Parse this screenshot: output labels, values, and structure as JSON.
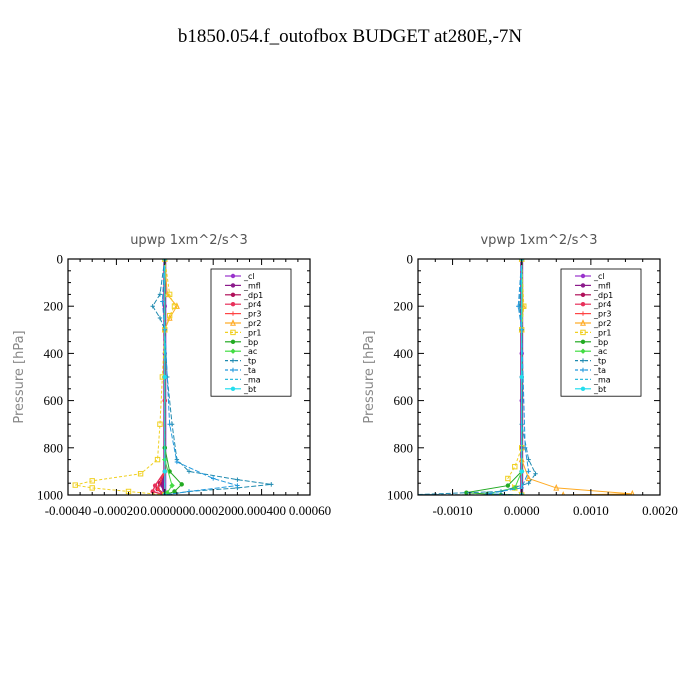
{
  "title": "b1850.054.f_outofbox  BUDGET at280E,-7N",
  "colors": {
    "_cl": "#9933cc",
    "_mfl": "#8b1a8b",
    "_dp1": "#b0105a",
    "_pr4": "#e8305a",
    "_pr3": "#ff4444",
    "_pr2": "#ffaa22",
    "_pr1": "#f0d020",
    "_bp": "#22aa22",
    "_ac": "#44dd44",
    "_tp": "#1f8ab0",
    "_ta": "#2299dd",
    "_ma": "#33bbdd",
    "_bt": "#22ddee"
  },
  "chart_data": [
    {
      "type": "line",
      "title": "upwp   1xm^2/s^3",
      "ylabel": "Pressure [hPa]",
      "xlabel": "",
      "xlim": [
        -0.0004,
        0.0006
      ],
      "ylim": [
        1000,
        0
      ],
      "y_inverted": true,
      "xticks": [
        "-0.00040",
        "-0.00020",
        "0.000000",
        "0.000200",
        "0.000400",
        "0.00060"
      ],
      "yticks": [
        "0",
        "200",
        "400",
        "600",
        "800",
        "1000"
      ],
      "legend_position": "top-right",
      "legend": [
        "_cl",
        "_mfl",
        "_dp1",
        "_pr4",
        "_pr3",
        "_pr2",
        "_pr1",
        "_bp",
        "_ac",
        "_tp",
        "_ta",
        "_ma",
        "_bt"
      ],
      "series": [
        {
          "name": "_cl",
          "points": [
            [
              0,
              0
            ],
            [
              0,
              200
            ],
            [
              0,
              400
            ],
            [
              0,
              600
            ],
            [
              0,
              800
            ],
            [
              0,
              1000
            ]
          ]
        },
        {
          "name": "_mfl",
          "points": [
            [
              0,
              0
            ],
            [
              0,
              500
            ],
            [
              0,
              900
            ],
            [
              -1e-05,
              960
            ],
            [
              0,
              1000
            ]
          ]
        },
        {
          "name": "_dp1",
          "points": [
            [
              0,
              0
            ],
            [
              0,
              500
            ],
            [
              0,
              900
            ],
            [
              -2e-05,
              950
            ],
            [
              -3e-05,
              975
            ],
            [
              0,
              1000
            ]
          ]
        },
        {
          "name": "_pr4",
          "points": [
            [
              0,
              0
            ],
            [
              0,
              600
            ],
            [
              0,
              900
            ],
            [
              -4e-05,
              960
            ],
            [
              -5e-05,
              985
            ],
            [
              0,
              1000
            ]
          ]
        },
        {
          "name": "_pr3",
          "points": [
            [
              0,
              0
            ],
            [
              0,
              900
            ],
            [
              -3e-05,
              975
            ],
            [
              0,
              1000
            ]
          ]
        },
        {
          "name": "_pr2",
          "points": [
            [
              0,
              0
            ],
            [
              1e-05,
              150
            ],
            [
              5e-05,
              200
            ],
            [
              2e-05,
              250
            ],
            [
              0,
              300
            ],
            [
              0,
              1000
            ]
          ]
        },
        {
          "name": "_pr1",
          "points": [
            [
              0,
              0
            ],
            [
              2e-05,
              150
            ],
            [
              4e-05,
              200
            ],
            [
              2e-05,
              240
            ],
            [
              0,
              300
            ],
            [
              -1e-05,
              500
            ],
            [
              -2e-05,
              700
            ],
            [
              -3e-05,
              850
            ],
            [
              -0.0001,
              910
            ],
            [
              -0.0003,
              940
            ],
            [
              -0.00037,
              958
            ],
            [
              -0.0003,
              970
            ],
            [
              -0.00015,
              985
            ],
            [
              0,
              1000
            ]
          ]
        },
        {
          "name": "_bp",
          "points": [
            [
              0,
              0
            ],
            [
              0,
              800
            ],
            [
              2e-05,
              900
            ],
            [
              7e-05,
              955
            ],
            [
              4e-05,
              985
            ],
            [
              0,
              1000
            ]
          ]
        },
        {
          "name": "_ac",
          "points": [
            [
              0,
              0
            ],
            [
              0,
              850
            ],
            [
              3e-05,
              960
            ],
            [
              1e-05,
              990
            ],
            [
              0,
              1000
            ]
          ]
        },
        {
          "name": "_tp",
          "points": [
            [
              0,
              0
            ],
            [
              -2e-05,
              150
            ],
            [
              -5e-05,
              200
            ],
            [
              -2e-05,
              250
            ],
            [
              0,
              300
            ],
            [
              1e-05,
              500
            ],
            [
              3e-05,
              700
            ],
            [
              5e-05,
              850
            ],
            [
              0.0001,
              900
            ],
            [
              0.0003,
              935
            ],
            [
              0.00044,
              955
            ],
            [
              0.0003,
              970
            ],
            [
              0.0001,
              985
            ],
            [
              0,
              1000
            ]
          ]
        },
        {
          "name": "_ta",
          "points": [
            [
              0,
              0
            ],
            [
              -1e-05,
              180
            ],
            [
              0,
              300
            ],
            [
              2e-05,
              700
            ],
            [
              5e-05,
              860
            ],
            [
              0.0002,
              930
            ],
            [
              0.0003,
              960
            ],
            [
              0.0001,
              985
            ],
            [
              0,
              1000
            ]
          ]
        },
        {
          "name": "_ma",
          "points": [
            [
              0,
              0
            ],
            [
              0,
              500
            ],
            [
              0,
              900
            ],
            [
              0,
              1000
            ]
          ]
        },
        {
          "name": "_bt",
          "points": [
            [
              0,
              0
            ],
            [
              0,
              500
            ],
            [
              0,
              900
            ],
            [
              0,
              1000
            ]
          ]
        }
      ]
    },
    {
      "type": "line",
      "title": "vpwp   1xm^2/s^3",
      "ylabel": "Pressure [hPa]",
      "xlabel": "",
      "xlim": [
        -0.0015,
        0.002
      ],
      "ylim": [
        1000,
        0
      ],
      "y_inverted": true,
      "xticks": [
        "-0.0010",
        "0.0000",
        "0.0010",
        "0.0020"
      ],
      "yticks": [
        "0",
        "200",
        "400",
        "600",
        "800",
        "1000"
      ],
      "legend_position": "top-right",
      "legend": [
        "_cl",
        "_mfl",
        "_dp1",
        "_pr4",
        "_pr3",
        "_pr2",
        "_pr1",
        "_bp",
        "_ac",
        "_tp",
        "_ta",
        "_ma",
        "_bt"
      ],
      "series": [
        {
          "name": "_cl",
          "points": [
            [
              0,
              0
            ],
            [
              0,
              200
            ],
            [
              0,
              400
            ],
            [
              0,
              600
            ],
            [
              0,
              800
            ],
            [
              0,
              1000
            ]
          ]
        },
        {
          "name": "_mfl",
          "points": [
            [
              0,
              0
            ],
            [
              0,
              500
            ],
            [
              0,
              900
            ],
            [
              0,
              1000
            ]
          ]
        },
        {
          "name": "_dp1",
          "points": [
            [
              0,
              0
            ],
            [
              0,
              500
            ],
            [
              0,
              900
            ],
            [
              0,
              1000
            ]
          ]
        },
        {
          "name": "_pr4",
          "points": [
            [
              0,
              0
            ],
            [
              0,
              500
            ],
            [
              0,
              900
            ],
            [
              0,
              1000
            ]
          ]
        },
        {
          "name": "_pr3",
          "points": [
            [
              0,
              0
            ],
            [
              0,
              900
            ],
            [
              0,
              1000
            ]
          ]
        },
        {
          "name": "_pr2",
          "points": [
            [
              0,
              0
            ],
            [
              2e-05,
              200
            ],
            [
              0,
              300
            ],
            [
              0,
              850
            ],
            [
              0.0001,
              930
            ],
            [
              0.0005,
              970
            ],
            [
              0.0016,
              995
            ],
            [
              0.0006,
              1000
            ]
          ]
        },
        {
          "name": "_pr1",
          "points": [
            [
              0,
              0
            ],
            [
              3e-05,
              200
            ],
            [
              0,
              300
            ],
            [
              0,
              800
            ],
            [
              -0.0001,
              880
            ],
            [
              -0.0002,
              930
            ],
            [
              -0.0001,
              970
            ],
            [
              0,
              1000
            ]
          ]
        },
        {
          "name": "_bp",
          "points": [
            [
              0,
              0
            ],
            [
              0,
              900
            ],
            [
              -0.0002,
              960
            ],
            [
              -0.0008,
              990
            ],
            [
              -0.0003,
              1000
            ]
          ]
        },
        {
          "name": "_ac",
          "points": [
            [
              0,
              0
            ],
            [
              0,
              900
            ],
            [
              -0.0001,
              970
            ],
            [
              -0.0005,
              995
            ],
            [
              0,
              1000
            ]
          ]
        },
        {
          "name": "_tp",
          "points": [
            [
              0,
              0
            ],
            [
              -3e-05,
              200
            ],
            [
              0,
              300
            ],
            [
              0,
              700
            ],
            [
              0.0001,
              850
            ],
            [
              0.0002,
              910
            ],
            [
              0.0001,
              950
            ],
            [
              -0.0003,
              985
            ],
            [
              -0.0015,
              998
            ],
            [
              -0.0005,
              1000
            ]
          ]
        },
        {
          "name": "_ta",
          "points": [
            [
              0,
              0
            ],
            [
              -5e-05,
              200
            ],
            [
              0,
              300
            ],
            [
              5e-05,
              800
            ],
            [
              0.0001,
              900
            ],
            [
              0,
              970
            ],
            [
              -0.0005,
              995
            ],
            [
              0,
              1000
            ]
          ]
        },
        {
          "name": "_ma",
          "points": [
            [
              0,
              0
            ],
            [
              0,
              500
            ],
            [
              0,
              900
            ],
            [
              0,
              1000
            ]
          ]
        },
        {
          "name": "_bt",
          "points": [
            [
              0,
              0
            ],
            [
              0,
              500
            ],
            [
              0,
              900
            ],
            [
              0,
              1000
            ]
          ]
        }
      ]
    }
  ]
}
